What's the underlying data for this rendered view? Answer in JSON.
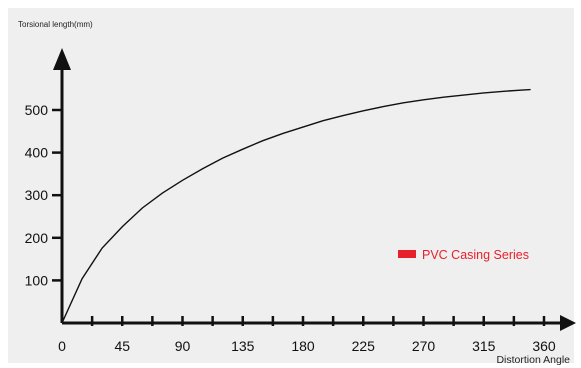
{
  "chart_data": {
    "type": "line",
    "title": "",
    "ylabel": "Torsional length(mm)",
    "xlabel": "Distortion Angle",
    "xlim": [
      0,
      360
    ],
    "ylim": [
      0,
      600
    ],
    "x_ticks": [
      0,
      45,
      90,
      135,
      180,
      225,
      270,
      315,
      360
    ],
    "x_tick_labels": [
      "0",
      "45",
      "90",
      "135",
      "180",
      "225",
      "270",
      "315",
      "360"
    ],
    "y_ticks": [
      100,
      200,
      300,
      400,
      500
    ],
    "y_tick_labels": [
      "100",
      "200",
      "300",
      "400",
      "500"
    ],
    "grid": false,
    "legend_position": "right",
    "series": [
      {
        "name": "PVC Casing Series",
        "color": "#e8202a",
        "x": [
          0,
          15,
          30,
          45,
          60,
          75,
          90,
          105,
          120,
          135,
          150,
          165,
          180,
          195,
          210,
          225,
          240,
          255,
          270,
          285,
          300,
          315,
          330,
          345,
          350
        ],
        "y": [
          0,
          104,
          176,
          226,
          270,
          305,
          335,
          362,
          387,
          408,
          428,
          445,
          460,
          475,
          487,
          498,
          508,
          517,
          524,
          530,
          535,
          540,
          544,
          547,
          548
        ]
      }
    ]
  },
  "colors": {
    "background": "#efefef",
    "axis": "#111111",
    "curve": "#111111"
  }
}
